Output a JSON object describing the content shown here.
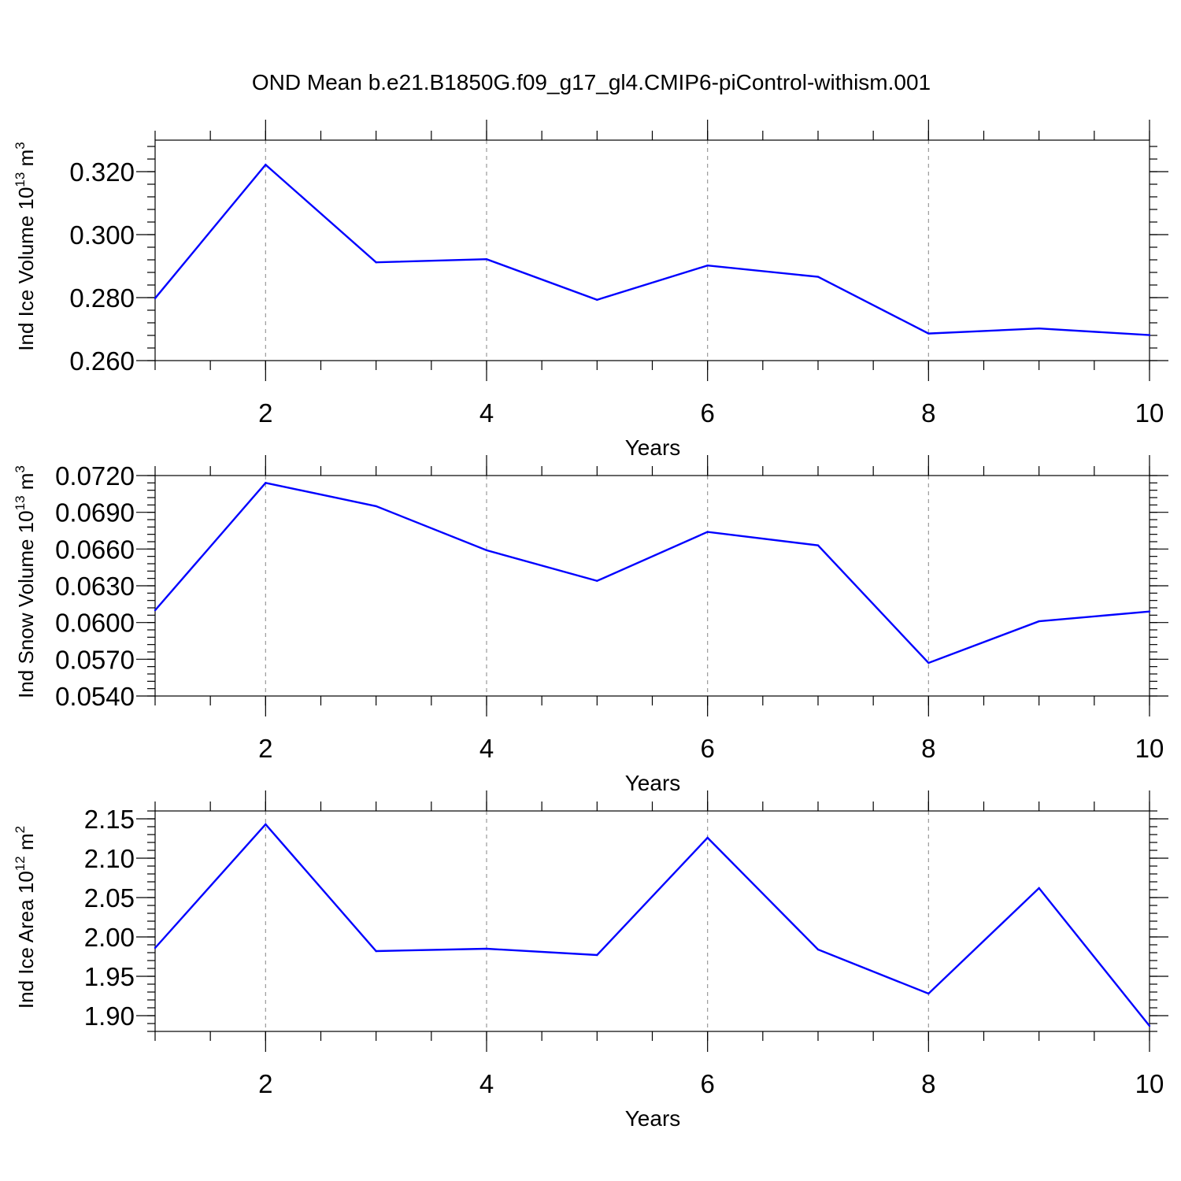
{
  "title": "OND Mean b.e21.B1850G.f09_g17_gl4.CMIP6-piControl-withism.001",
  "colors": {
    "line": "#0000ff",
    "axis": "#000000",
    "grid": "#9a9a9a"
  },
  "chart_data": [
    {
      "type": "line",
      "ylabel": {
        "main": "Ind Ice Volume 10",
        "exp": "13",
        "unit": " m",
        "unit_exp": "3"
      },
      "xlabel": "Years",
      "xlim": [
        1,
        10
      ],
      "ylim": [
        0.26,
        0.33
      ],
      "xticks": [
        "2",
        "4",
        "6",
        "8",
        "10"
      ],
      "yticks": [
        "0.260",
        "0.280",
        "0.300",
        "0.320"
      ],
      "grid": "dashed vertical at major x ticks",
      "series": [
        {
          "x": [
            1,
            2,
            3,
            4,
            5,
            6,
            7,
            8,
            9,
            10
          ],
          "values": [
            0.2798,
            0.3222,
            0.2912,
            0.2922,
            0.2793,
            0.2902,
            0.2866,
            0.2686,
            0.2702,
            0.2681
          ]
        }
      ]
    },
    {
      "type": "line",
      "ylabel": {
        "main": "Ind Snow Volume 10",
        "exp": "13",
        "unit": " m",
        "unit_exp": "3"
      },
      "xlabel": "Years",
      "xlim": [
        1,
        10
      ],
      "ylim": [
        0.054,
        0.072
      ],
      "xticks": [
        "2",
        "4",
        "6",
        "8",
        "10"
      ],
      "yticks": [
        "0.0540",
        "0.0570",
        "0.0600",
        "0.0630",
        "0.0660",
        "0.0690",
        "0.0720"
      ],
      "grid": "dashed vertical at major x ticks",
      "series": [
        {
          "x": [
            1,
            2,
            3,
            4,
            5,
            6,
            7,
            8,
            9,
            10
          ],
          "values": [
            0.061,
            0.0714,
            0.0695,
            0.0659,
            0.0634,
            0.0674,
            0.0663,
            0.0567,
            0.0601,
            0.0609
          ]
        }
      ]
    },
    {
      "type": "line",
      "ylabel": {
        "main": "Ind Ice Area 10",
        "exp": "12",
        "unit": " m",
        "unit_exp": "2"
      },
      "xlabel": "Years",
      "xlim": [
        1,
        10
      ],
      "ylim": [
        1.88,
        2.16
      ],
      "xticks": [
        "2",
        "4",
        "6",
        "8",
        "10"
      ],
      "yticks": [
        "1.90",
        "1.95",
        "2.00",
        "2.05",
        "2.10",
        "2.15"
      ],
      "grid": "dashed vertical at major x ticks",
      "series": [
        {
          "x": [
            1,
            2,
            3,
            4,
            5,
            6,
            7,
            8,
            9,
            10
          ],
          "values": [
            1.986,
            2.143,
            1.982,
            1.985,
            1.977,
            2.126,
            1.984,
            1.928,
            2.062,
            1.887
          ]
        }
      ]
    }
  ]
}
